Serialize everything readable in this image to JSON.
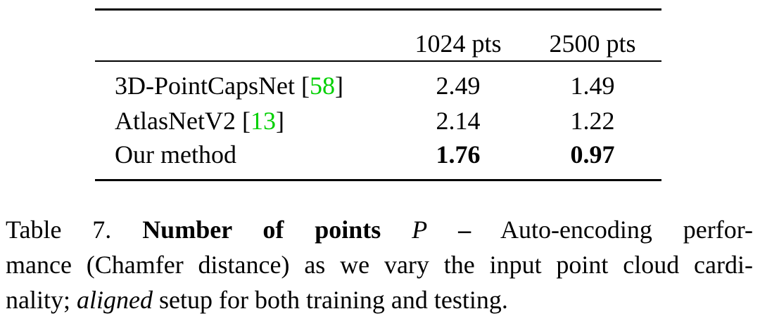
{
  "table": {
    "columns": [
      "1024 pts",
      "2500 pts"
    ],
    "rows": [
      {
        "label": [
          "3D-PointCapsNet [",
          "58",
          "]"
        ],
        "values": [
          2.49,
          1.49
        ],
        "best": false
      },
      {
        "label": [
          "AtlasNetV2 [",
          "13",
          "]"
        ],
        "values": [
          2.14,
          1.22
        ],
        "best": false
      },
      {
        "label": [
          "Our method"
        ],
        "values": [
          1.76,
          0.97
        ],
        "best": true
      }
    ],
    "citation_color": "#00d000"
  },
  "caption": {
    "label": "Table 7.",
    "title": "Number of points",
    "symbol": "P",
    "dash": "–",
    "lines": [
      "Auto-encoding perfor-",
      "mance (Chamfer distance) as we vary the input point cloud cardi-",
      "nality;"
    ],
    "emphasis": "aligned",
    "tail": "setup for both training and testing."
  }
}
